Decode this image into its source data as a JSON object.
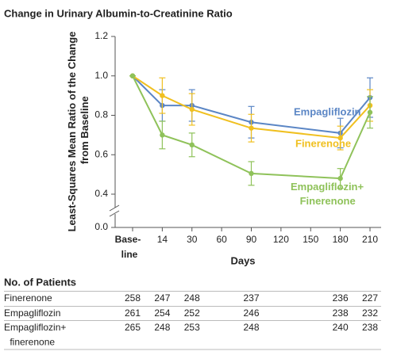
{
  "chart_data": {
    "type": "line",
    "title": "Change in Urinary Albumin-to-Creatinine Ratio",
    "ylabel": "Least-Squares Mean Ratio of the Change from Baseline",
    "xlabel": "Days",
    "x": [
      0,
      14,
      30,
      90,
      180,
      210
    ],
    "xticks": [
      {
        "value": 0,
        "label": "Base-line"
      },
      14,
      30,
      60,
      90,
      120,
      150,
      180,
      210
    ],
    "ylim": [
      0,
      1.2
    ],
    "yticks": [
      {
        "value": 0,
        "label": "0.0"
      },
      0.4,
      0.6,
      0.8,
      {
        "value": 1,
        "label": "1.0"
      },
      1.2
    ],
    "axis_break": true,
    "series": [
      {
        "name": "Empagliflozin",
        "color": "#5b86c5",
        "values": [
          1.0,
          0.85,
          0.85,
          0.765,
          0.71,
          0.89
        ],
        "errors": [
          0,
          0.08,
          0.08,
          0.08,
          0.075,
          0.1
        ]
      },
      {
        "name": "Finerenone",
        "color": "#f0c020",
        "values": [
          1.0,
          0.9,
          0.83,
          0.735,
          0.685,
          0.85
        ],
        "errors": [
          0,
          0.09,
          0.08,
          0.07,
          0.06,
          0.08
        ]
      },
      {
        "name": "Empagliflozin+ Finerenone",
        "color": "#8fc25a",
        "values": [
          1.0,
          0.7,
          0.65,
          0.505,
          0.48,
          0.815
        ],
        "errors": [
          0,
          0.07,
          0.06,
          0.06,
          0.05,
          0.08
        ]
      }
    ]
  },
  "table": {
    "title": "No. of Patients",
    "rows": [
      {
        "label": "Finerenone",
        "values": [
          "258",
          "247",
          "248",
          "237",
          "236",
          "227"
        ]
      },
      {
        "label": "Empagliflozin",
        "values": [
          "261",
          "254",
          "252",
          "246",
          "238",
          "232"
        ]
      },
      {
        "label": "Empagliflozin+ finerenone",
        "values": [
          "265",
          "248",
          "253",
          "248",
          "240",
          "238"
        ]
      }
    ]
  }
}
